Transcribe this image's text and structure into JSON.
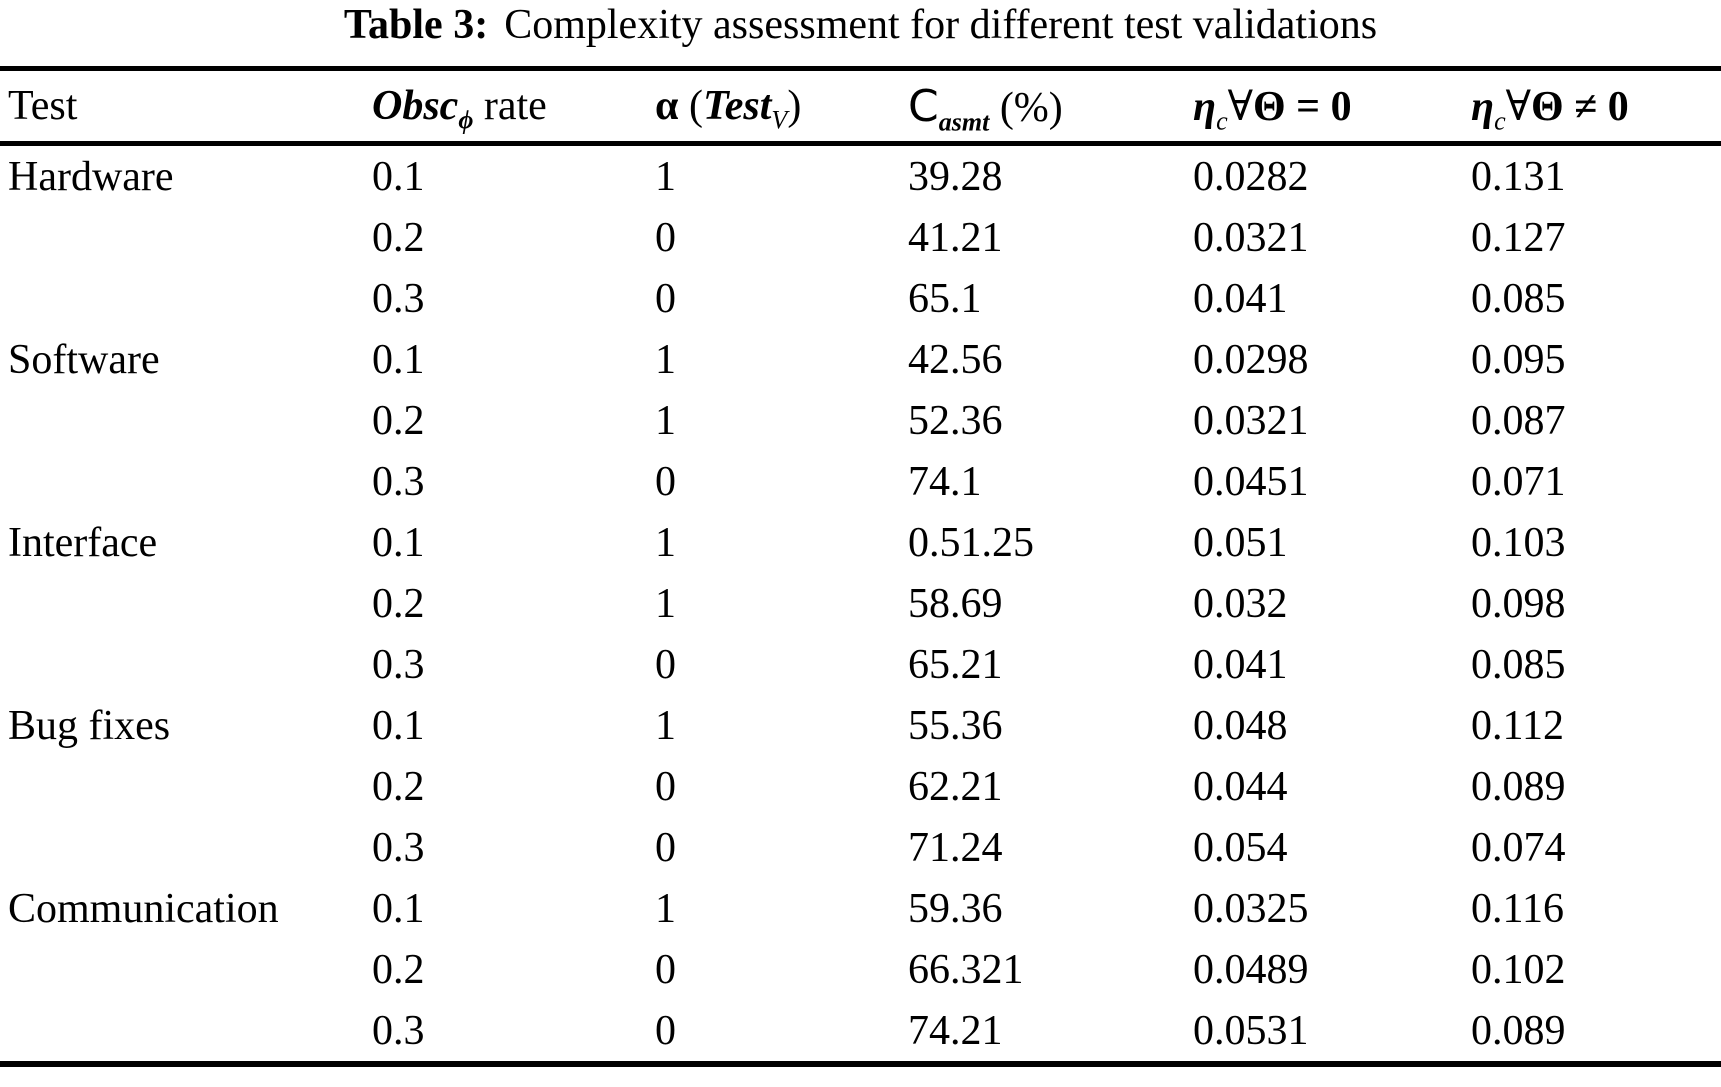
{
  "caption": {
    "label": "Table 3:",
    "text": "Complexity assessment for different test validations"
  },
  "columns": {
    "test": {
      "label": "Test"
    },
    "obsc": {
      "main": "Obsc",
      "sub": "ϕ",
      "suffix": " rate"
    },
    "alpha": {
      "sym": "α",
      "open": " (",
      "main": "Test",
      "sub": "V",
      "close": ")"
    },
    "casmt": {
      "main": "C",
      "sub": "asmt",
      "suffix": " (%)"
    },
    "eta_eq": {
      "eta": "η",
      "sub": "c",
      "forall": "∀",
      "theta": "Θ",
      "rel": " = 0"
    },
    "eta_neq": {
      "eta": "η",
      "sub": "c",
      "forall": "∀",
      "theta": "Θ",
      "rel": " ≠ 0"
    }
  },
  "rows": [
    {
      "test": "Hardware",
      "obsc_rate": "0.1",
      "alpha": "1",
      "c_asmt": "39.28",
      "eta_eq0": "0.0282",
      "eta_neq0": "0.131"
    },
    {
      "test": "",
      "obsc_rate": "0.2",
      "alpha": "0",
      "c_asmt": "41.21",
      "eta_eq0": "0.0321",
      "eta_neq0": "0.127"
    },
    {
      "test": "",
      "obsc_rate": "0.3",
      "alpha": "0",
      "c_asmt": "65.1",
      "eta_eq0": "0.041",
      "eta_neq0": "0.085"
    },
    {
      "test": "Software",
      "obsc_rate": "0.1",
      "alpha": "1",
      "c_asmt": "42.56",
      "eta_eq0": "0.0298",
      "eta_neq0": "0.095"
    },
    {
      "test": "",
      "obsc_rate": "0.2",
      "alpha": "1",
      "c_asmt": "52.36",
      "eta_eq0": "0.0321",
      "eta_neq0": "0.087"
    },
    {
      "test": "",
      "obsc_rate": "0.3",
      "alpha": "0",
      "c_asmt": "74.1",
      "eta_eq0": "0.0451",
      "eta_neq0": "0.071"
    },
    {
      "test": "Interface",
      "obsc_rate": "0.1",
      "alpha": "1",
      "c_asmt": "0.51.25",
      "eta_eq0": "0.051",
      "eta_neq0": "0.103"
    },
    {
      "test": "",
      "obsc_rate": "0.2",
      "alpha": "1",
      "c_asmt": "58.69",
      "eta_eq0": "0.032",
      "eta_neq0": "0.098"
    },
    {
      "test": "",
      "obsc_rate": "0.3",
      "alpha": "0",
      "c_asmt": "65.21",
      "eta_eq0": "0.041",
      "eta_neq0": "0.085"
    },
    {
      "test": "Bug fixes",
      "obsc_rate": "0.1",
      "alpha": "1",
      "c_asmt": "55.36",
      "eta_eq0": "0.048",
      "eta_neq0": "0.112"
    },
    {
      "test": "",
      "obsc_rate": "0.2",
      "alpha": "0",
      "c_asmt": "62.21",
      "eta_eq0": "0.044",
      "eta_neq0": "0.089"
    },
    {
      "test": "",
      "obsc_rate": "0.3",
      "alpha": "0",
      "c_asmt": "71.24",
      "eta_eq0": "0.054",
      "eta_neq0": "0.074"
    },
    {
      "test": "Communication",
      "obsc_rate": "0.1",
      "alpha": "1",
      "c_asmt": "59.36",
      "eta_eq0": "0.0325",
      "eta_neq0": "0.116"
    },
    {
      "test": "",
      "obsc_rate": "0.2",
      "alpha": "0",
      "c_asmt": "66.321",
      "eta_eq0": "0.0489",
      "eta_neq0": "0.102"
    },
    {
      "test": "",
      "obsc_rate": "0.3",
      "alpha": "0",
      "c_asmt": "74.21",
      "eta_eq0": "0.0531",
      "eta_neq0": "0.089"
    }
  ]
}
